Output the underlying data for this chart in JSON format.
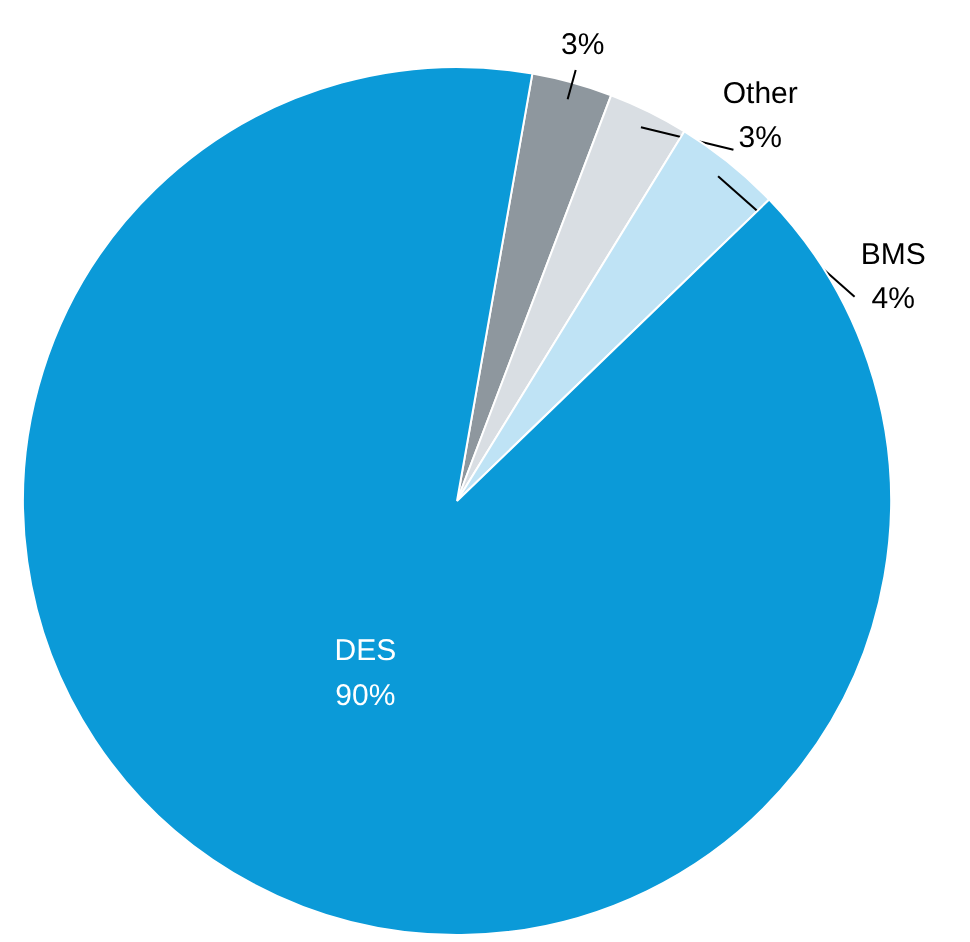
{
  "chart_data": {
    "type": "pie",
    "categories": [
      null,
      "Other",
      "BMS",
      "DES"
    ],
    "values": [
      3,
      3,
      4,
      90
    ],
    "value_labels": [
      "3%",
      "3%",
      "4%",
      "90%"
    ],
    "colors": [
      "#8e979e",
      "#d9dee3",
      "#bfe3f5",
      "#0b9ad8"
    ]
  }
}
